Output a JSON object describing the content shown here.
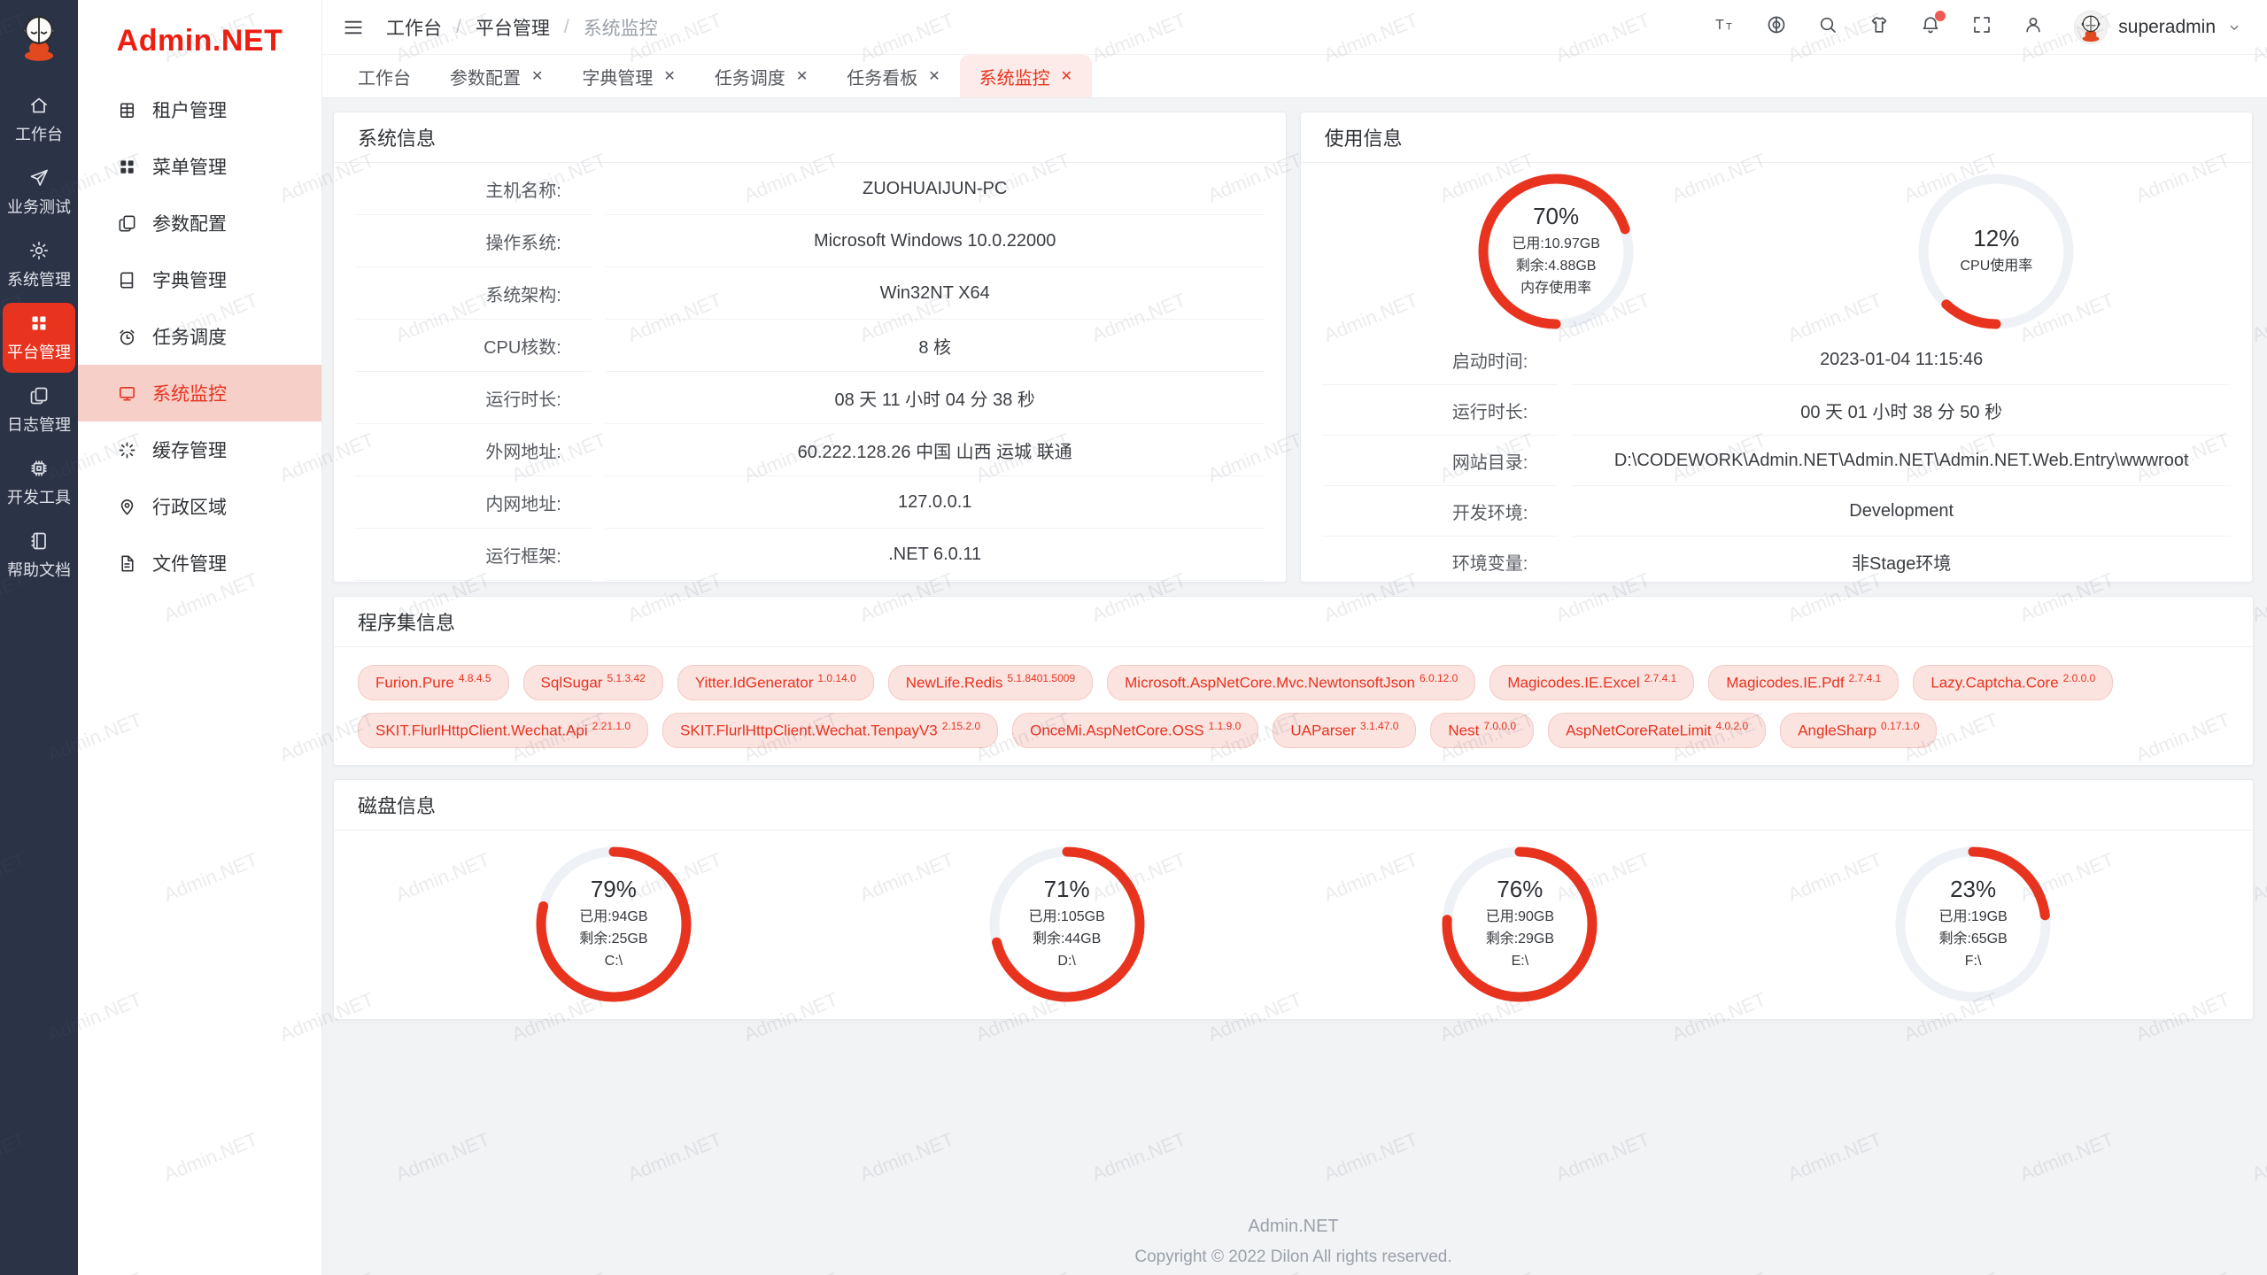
{
  "brand": {
    "logo_text": "Admin.NET"
  },
  "watermark": {
    "text": "Admin.NET"
  },
  "rail": {
    "items": [
      {
        "key": "workbench",
        "label": "工作台",
        "icon": "home-icon",
        "active": false
      },
      {
        "key": "business-test",
        "label": "业务测试",
        "icon": "send-icon",
        "active": false
      },
      {
        "key": "system-manage",
        "label": "系统管理",
        "icon": "gear-icon",
        "active": false
      },
      {
        "key": "platform-manage",
        "label": "平台管理",
        "icon": "grid-icon",
        "active": true
      },
      {
        "key": "log-manage",
        "label": "日志管理",
        "icon": "copy-icon",
        "active": false
      },
      {
        "key": "dev-tools",
        "label": "开发工具",
        "icon": "chip-icon",
        "active": false
      },
      {
        "key": "help-docs",
        "label": "帮助文档",
        "icon": "notebook-icon",
        "active": false
      }
    ]
  },
  "sidebar": {
    "items": [
      {
        "key": "tenant",
        "label": "租户管理",
        "icon": "tenant-icon",
        "active": false
      },
      {
        "key": "menu",
        "label": "菜单管理",
        "icon": "menu-grid-icon",
        "active": false
      },
      {
        "key": "config",
        "label": "参数配置",
        "icon": "config-icon",
        "active": false
      },
      {
        "key": "dict",
        "label": "字典管理",
        "icon": "dict-icon",
        "active": false
      },
      {
        "key": "schedule",
        "label": "任务调度",
        "icon": "alarm-icon",
        "active": false
      },
      {
        "key": "monitor",
        "label": "系统监控",
        "icon": "monitor-icon",
        "active": true
      },
      {
        "key": "cache",
        "label": "缓存管理",
        "icon": "cache-icon",
        "active": false
      },
      {
        "key": "region",
        "label": "行政区域",
        "icon": "location-icon",
        "active": false
      },
      {
        "key": "file",
        "label": "文件管理",
        "icon": "file-icon",
        "active": false
      }
    ]
  },
  "header": {
    "breadcrumb": [
      "工作台",
      "平台管理",
      "系统监控"
    ],
    "username": "superadmin"
  },
  "tabs": [
    {
      "key": "workbench",
      "label": "工作台",
      "closable": false,
      "active": false
    },
    {
      "key": "config",
      "label": "参数配置",
      "closable": true,
      "active": false
    },
    {
      "key": "dict",
      "label": "字典管理",
      "closable": true,
      "active": false
    },
    {
      "key": "schedule",
      "label": "任务调度",
      "closable": true,
      "active": false
    },
    {
      "key": "taskboard",
      "label": "任务看板",
      "closable": true,
      "active": false
    },
    {
      "key": "monitor",
      "label": "系统监控",
      "closable": true,
      "active": true
    }
  ],
  "system_info": {
    "title": "系统信息",
    "rows": [
      {
        "label": "主机名称:",
        "value": "ZUOHUAIJUN-PC"
      },
      {
        "label": "操作系统:",
        "value": "Microsoft Windows 10.0.22000"
      },
      {
        "label": "系统架构:",
        "value": "Win32NT X64"
      },
      {
        "label": "CPU核数:",
        "value": "8 核"
      },
      {
        "label": "运行时长:",
        "value": "08 天 11 小时 04 分 38 秒"
      },
      {
        "label": "外网地址:",
        "value": "60.222.128.26 中国 山西 运城 联通"
      },
      {
        "label": "内网地址:",
        "value": "127.0.0.1"
      },
      {
        "label": "运行框架:",
        "value": ".NET 6.0.11"
      }
    ]
  },
  "usage_info": {
    "title": "使用信息",
    "gauges": [
      {
        "name": "memory-usage-gauge",
        "percent": 70,
        "start": "bottom",
        "lines": [
          "70%",
          "已用:10.97GB",
          "剩余:4.88GB",
          "内存使用率"
        ]
      },
      {
        "name": "cpu-usage-gauge",
        "percent": 12,
        "start": "bottom",
        "lines": [
          "12%",
          "CPU使用率"
        ]
      }
    ],
    "rows": [
      {
        "label": "启动时间:",
        "value": "2023-01-04 11:15:46"
      },
      {
        "label": "运行时长:",
        "value": "00 天 01 小时 38 分 50 秒"
      },
      {
        "label": "网站目录:",
        "value": "D:\\CODEWORK\\Admin.NET\\Admin.NET\\Admin.NET.Web.Entry\\wwwroot"
      },
      {
        "label": "开发环境:",
        "value": "Development"
      },
      {
        "label": "环境变量:",
        "value": "非Stage环境"
      }
    ]
  },
  "assemblies": {
    "title": "程序集信息",
    "packages": [
      {
        "name": "Furion.Pure",
        "version": "4.8.4.5"
      },
      {
        "name": "SqlSugar",
        "version": "5.1.3.42"
      },
      {
        "name": "Yitter.IdGenerator",
        "version": "1.0.14.0"
      },
      {
        "name": "NewLife.Redis",
        "version": "5.1.8401.5009"
      },
      {
        "name": "Microsoft.AspNetCore.Mvc.NewtonsoftJson",
        "version": "6.0.12.0"
      },
      {
        "name": "Magicodes.IE.Excel",
        "version": "2.7.4.1"
      },
      {
        "name": "Magicodes.IE.Pdf",
        "version": "2.7.4.1"
      },
      {
        "name": "Lazy.Captcha.Core",
        "version": "2.0.0.0"
      },
      {
        "name": "SKIT.FlurlHttpClient.Wechat.Api",
        "version": "2.21.1.0"
      },
      {
        "name": "SKIT.FlurlHttpClient.Wechat.TenpayV3",
        "version": "2.15.2.0"
      },
      {
        "name": "OnceMi.AspNetCore.OSS",
        "version": "1.1.9.0"
      },
      {
        "name": "UAParser",
        "version": "3.1.47.0"
      },
      {
        "name": "Nest",
        "version": "7.0.0.0"
      },
      {
        "name": "AspNetCoreRateLimit",
        "version": "4.0.2.0"
      },
      {
        "name": "AngleSharp",
        "version": "0.17.1.0"
      }
    ]
  },
  "disk_info": {
    "title": "磁盘信息",
    "gauges": [
      {
        "name": "disk-c-gauge",
        "percent": 79,
        "start": "top",
        "lines": [
          "79%",
          "已用:94GB",
          "剩余:25GB",
          "C:\\"
        ]
      },
      {
        "name": "disk-d-gauge",
        "percent": 71,
        "start": "top",
        "lines": [
          "71%",
          "已用:105GB",
          "剩余:44GB",
          "D:\\"
        ]
      },
      {
        "name": "disk-e-gauge",
        "percent": 76,
        "start": "top",
        "lines": [
          "76%",
          "已用:90GB",
          "剩余:29GB",
          "E:\\"
        ]
      },
      {
        "name": "disk-f-gauge",
        "percent": 23,
        "start": "top",
        "lines": [
          "23%",
          "已用:19GB",
          "剩余:65GB",
          "F:\\"
        ]
      }
    ]
  },
  "footer": {
    "line1": "Admin.NET",
    "line2": "Copyright © 2022 Dilon All rights reserved."
  },
  "colors": {
    "accent": "#e8331f",
    "rail_bg": "#2b3346",
    "menu_active_bg": "#f6cfc9",
    "tab_active_bg": "#fcebe8",
    "gauge_track": "#eef1f6",
    "badge_bg": "#fbe3e0"
  }
}
